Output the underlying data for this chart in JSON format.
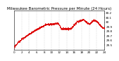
{
  "title": "Milwaukee Barometric Pressure per Minute (24 Hours)",
  "line_color": "#dd0000",
  "bg_color": "#ffffff",
  "plot_bg_color": "#ffffff",
  "grid_color": "#bbbbbb",
  "ylim": [
    29.4,
    30.25
  ],
  "ytick_values": [
    29.5,
    29.6,
    29.7,
    29.8,
    29.9,
    30.0,
    30.1,
    30.2
  ],
  "ytick_labels": [
    "29.5",
    "29.6",
    "29.7",
    "29.8",
    "29.9",
    "30",
    "30.1",
    "30.2"
  ],
  "num_points": 1440,
  "marker_size": 0.3,
  "title_fontsize": 4.0,
  "tick_fontsize": 3.0,
  "seed": 12
}
